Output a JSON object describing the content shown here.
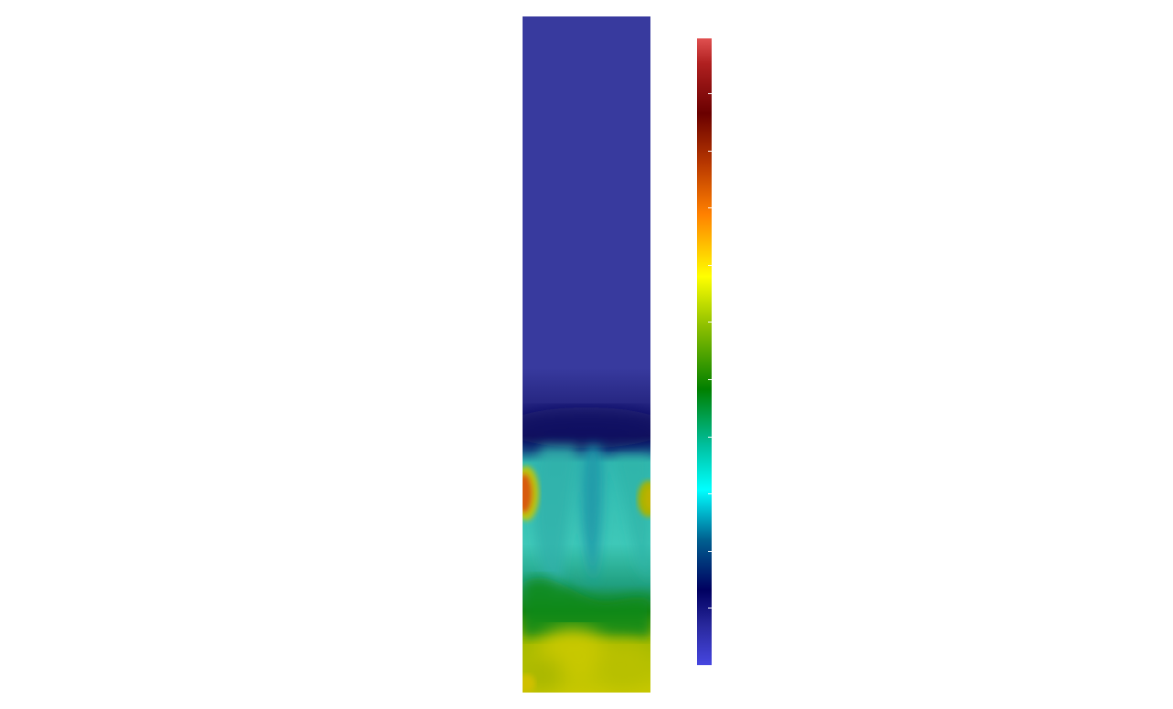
{
  "scene": {
    "background_color": "#ffffff",
    "colormap": {
      "name": "jet-like",
      "stops": [
        {
          "pos": 0.0,
          "color": "#e05050"
        },
        {
          "pos": 0.04,
          "color": "#b02020"
        },
        {
          "pos": 0.12,
          "color": "#6a0000"
        },
        {
          "pos": 0.2,
          "color": "#b83800"
        },
        {
          "pos": 0.28,
          "color": "#ff8000"
        },
        {
          "pos": 0.38,
          "color": "#ffff00"
        },
        {
          "pos": 0.46,
          "color": "#8cbf00"
        },
        {
          "pos": 0.56,
          "color": "#008000"
        },
        {
          "pos": 0.65,
          "color": "#00c0a0"
        },
        {
          "pos": 0.72,
          "color": "#00ffff"
        },
        {
          "pos": 0.8,
          "color": "#006090"
        },
        {
          "pos": 0.88,
          "color": "#000060"
        },
        {
          "pos": 0.94,
          "color": "#2a2aa0"
        },
        {
          "pos": 1.0,
          "color": "#4646e0"
        }
      ],
      "tick_count": 10
    },
    "field_colors": {
      "top": "#383a9e",
      "dark_band": "#101060",
      "teal": "#3ec8b8",
      "teal_dark": "#1fa0a8",
      "green": "#108010",
      "yellow_green": "#b8c000",
      "yellow": "#c8c800",
      "hotspot_left": "#d85a10",
      "hotspot_right": "#a8b400"
    }
  }
}
